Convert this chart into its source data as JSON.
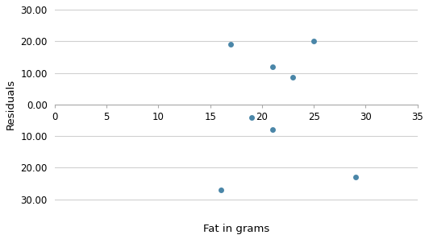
{
  "x": [
    17,
    19,
    21,
    21,
    23,
    25,
    29,
    16
  ],
  "y": [
    19,
    -4,
    -8,
    12,
    8.5,
    20,
    -23,
    -27
  ],
  "point_color": "#4a86a8",
  "point_size": 25,
  "xlabel": "Fat in grams",
  "ylabel": "Residuals",
  "xlim": [
    0,
    35
  ],
  "ylim": [
    -30,
    30
  ],
  "xticks": [
    0,
    5,
    10,
    15,
    20,
    25,
    30,
    35
  ],
  "yticks": [
    -30.0,
    -20.0,
    -10.0,
    0.0,
    10.0,
    20.0,
    30.0
  ],
  "background_color": "#ffffff",
  "grid_color": "#d0d0d0",
  "tick_label_fontsize": 8.5,
  "axis_label_fontsize": 9.5
}
